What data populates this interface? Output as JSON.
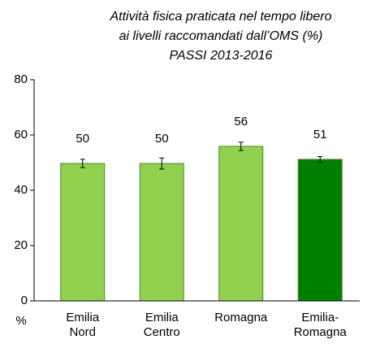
{
  "chart_data": {
    "type": "bar",
    "title": [
      "Attività fisica praticata nel tempo libero",
      "ai livelli raccomandati dall’OMS (%)",
      "PASSI 2013-2016"
    ],
    "y_label": "%",
    "categories": [
      [
        "Emilia",
        "Nord"
      ],
      [
        "Emilia",
        "Centro"
      ],
      [
        "Romagna"
      ],
      [
        "Emilia-",
        "Romagna"
      ]
    ],
    "values": [
      49.7,
      49.7,
      55.9,
      51.2
    ],
    "value_labels": [
      "50",
      "50",
      "56",
      "51"
    ],
    "errors": [
      1.5,
      2.0,
      1.5,
      1.0
    ],
    "colors": [
      "#92d050",
      "#92d050",
      "#92d050",
      "#008000"
    ],
    "border_color": "#4a8a2a",
    "ylim": [
      0,
      80
    ],
    "yticks": [
      0,
      20,
      40,
      60,
      80
    ],
    "grid": false
  }
}
